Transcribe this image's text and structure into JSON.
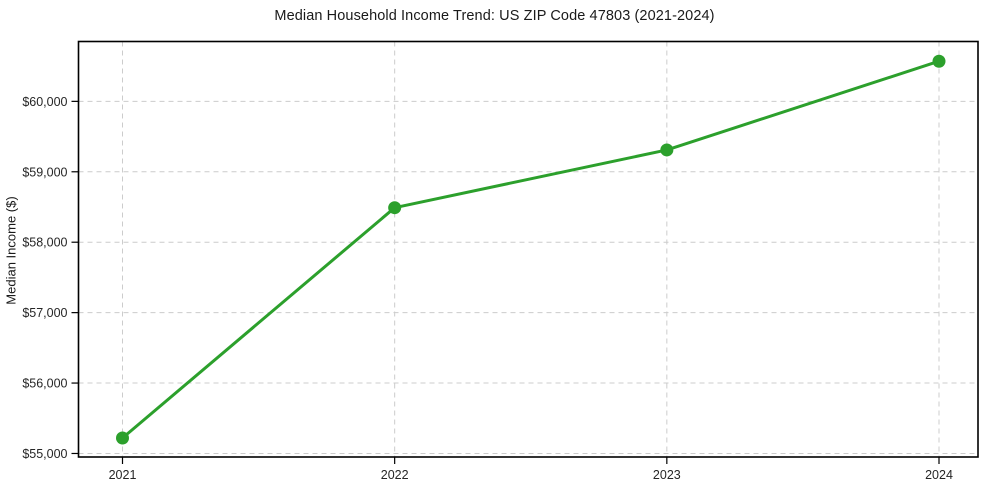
{
  "page": {
    "background": "#ffffff"
  },
  "chart_data": {
    "type": "line",
    "title": "Median Household Income Trend: US ZIP Code 47803 (2021-2024)",
    "xlabel": "",
    "ylabel": "Median Income ($)",
    "categories": [
      "2021",
      "2022",
      "2023",
      "2024"
    ],
    "series": [
      {
        "name": "Median Household Income",
        "values": [
          55220,
          58490,
          59310,
          60570
        ]
      }
    ],
    "ylim": [
      54950,
      60850
    ],
    "yticks": [
      55000,
      56000,
      57000,
      58000,
      59000,
      60000
    ],
    "ytick_labels": [
      "$55,000",
      "$56,000",
      "$57,000",
      "$58,000",
      "$59,000",
      "$60,000"
    ],
    "line_color": "#2ca02c",
    "marker": "circle",
    "marker_color": "#2ca02c",
    "grid": "dashed-both-axes",
    "grid_color": "#cccccc",
    "spine_color": "#000000",
    "legend_position": "none"
  }
}
